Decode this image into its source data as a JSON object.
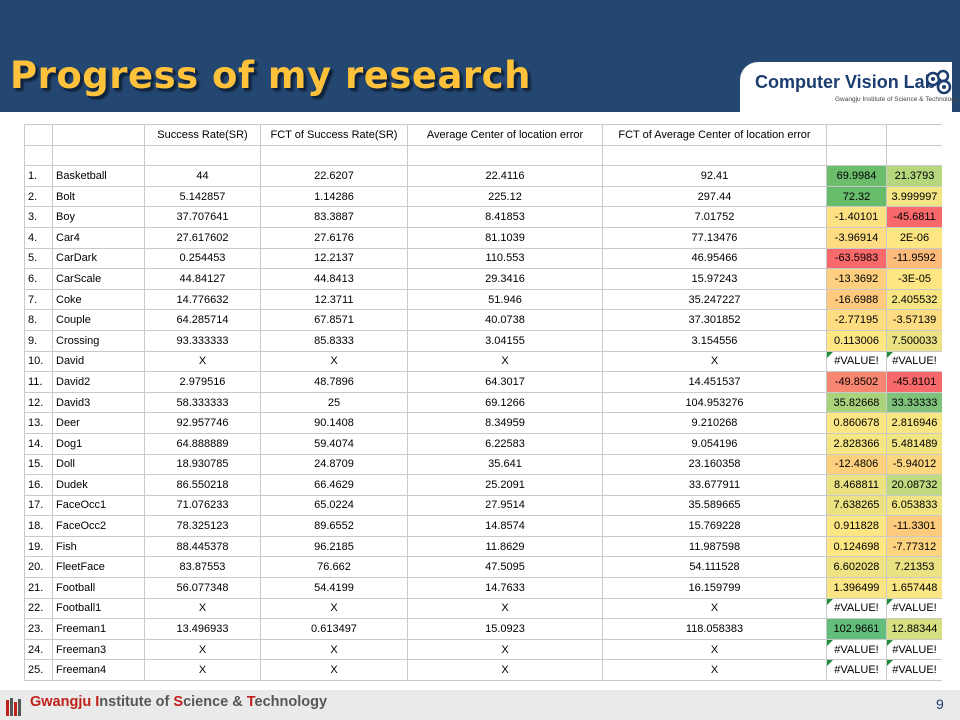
{
  "slide": {
    "title": "Progress of my research",
    "page_number": "9"
  },
  "logo": {
    "text": "Computer Vision Lab.",
    "subtitle": "Gwangju Institute of Science & Technology"
  },
  "footer": {
    "institute_part1": "Gwangju ",
    "institute_part2": "I",
    "institute_part3": "nstitute of ",
    "institute_part4": "S",
    "institute_part5": "cience & ",
    "institute_part6": "T",
    "institute_part7": "echnology"
  },
  "table": {
    "headers": [
      "",
      "",
      "Success Rate(SR)",
      "FCT of Success Rate(SR)",
      "Average Center of location error",
      "FCT of Average Center of location error",
      "",
      ""
    ],
    "rows": [
      {
        "num": "1.",
        "name": "Basketball",
        "sr": "44",
        "fct_sr": "22.6207",
        "acle": "22.4116",
        "fct_acle": "92.41",
        "d1": "69.9984",
        "d2": "21.3793",
        "c1": "#6cbe6d",
        "c2": "#b7d77d"
      },
      {
        "num": "2.",
        "name": "Bolt",
        "sr": "5.142857",
        "fct_sr": "1.14286",
        "acle": "225.12",
        "fct_acle": "297.44",
        "d1": "72.32",
        "d2": "3.999997",
        "c1": "#67bc6b",
        "c2": "#f3e584"
      },
      {
        "num": "3.",
        "name": "Boy",
        "sr": "37.707641",
        "fct_sr": "83.3887",
        "acle": "8.41853",
        "fct_acle": "7.01752",
        "d1": "-1.40101",
        "d2": "-45.6811",
        "c1": "#fee182",
        "c2": "#f8696b"
      },
      {
        "num": "4.",
        "name": "Car4",
        "sr": "27.617602",
        "fct_sr": "27.6176",
        "acle": "81.1039",
        "fct_acle": "77.13476",
        "d1": "-3.96914",
        "d2": "2E-06",
        "c1": "#fedc81",
        "c2": "#fee782"
      },
      {
        "num": "5.",
        "name": "CarDark",
        "sr": "0.254453",
        "fct_sr": "12.2137",
        "acle": "110.553",
        "fct_acle": "46.95466",
        "d1": "-63.5983",
        "d2": "-11.9592",
        "c1": "#f8696b",
        "c2": "#fcbb7b"
      },
      {
        "num": "6.",
        "name": "CarScale",
        "sr": "44.84127",
        "fct_sr": "44.8413",
        "acle": "29.3416",
        "fct_acle": "15.97243",
        "d1": "-13.3692",
        "d2": "-3E-05",
        "c1": "#fdcf7e",
        "c2": "#fee782"
      },
      {
        "num": "7.",
        "name": "Coke",
        "sr": "14.776632",
        "fct_sr": "12.3711",
        "acle": "51.946",
        "fct_acle": "35.247227",
        "d1": "-16.6988",
        "d2": "2.405532",
        "c1": "#fdca7e",
        "c2": "#f8e683"
      },
      {
        "num": "8.",
        "name": "Couple",
        "sr": "64.285714",
        "fct_sr": "67.8571",
        "acle": "40.0738",
        "fct_acle": "37.301852",
        "d1": "-2.77195",
        "d2": "-3.57139",
        "c1": "#fedd81",
        "c2": "#fedc81"
      },
      {
        "num": "9.",
        "name": "Crossing",
        "sr": "93.333333",
        "fct_sr": "85.8333",
        "acle": "3.04155",
        "fct_acle": "3.154556",
        "d1": "0.113006",
        "d2": "7.500033",
        "c1": "#fee683",
        "c2": "#ebe283"
      },
      {
        "num": "10.",
        "name": "David",
        "sr": "X",
        "fct_sr": "X",
        "acle": "X",
        "fct_acle": "X",
        "d1": "#VALUE!",
        "d2": "#VALUE!",
        "c1": "#ffffff",
        "c2": "#ffffff",
        "err": true
      },
      {
        "num": "11.",
        "name": "David2",
        "sr": "2.979516",
        "fct_sr": "48.7896",
        "acle": "64.3017",
        "fct_acle": "14.451537",
        "d1": "-49.8502",
        "d2": "-45.8101",
        "c1": "#f98670",
        "c2": "#f8696b"
      },
      {
        "num": "12.",
        "name": "David3",
        "sr": "58.333333",
        "fct_sr": "25",
        "acle": "69.1266",
        "fct_acle": "104.953276",
        "d1": "35.82668",
        "d2": "33.33333",
        "c1": "#aad27b",
        "c2": "#7fc27c"
      },
      {
        "num": "13.",
        "name": "Deer",
        "sr": "92.957746",
        "fct_sr": "90.1408",
        "acle": "8.34959",
        "fct_acle": "9.210268",
        "d1": "0.860678",
        "d2": "2.816946",
        "c1": "#fbe683",
        "c2": "#f7e683"
      },
      {
        "num": "14.",
        "name": "Dog1",
        "sr": "64.888889",
        "fct_sr": "59.4074",
        "acle": "6.22583",
        "fct_acle": "9.054196",
        "d1": "2.828366",
        "d2": "5.481489",
        "c1": "#f5e583",
        "c2": "#f1e483"
      },
      {
        "num": "15.",
        "name": "Doll",
        "sr": "18.930785",
        "fct_sr": "24.8709",
        "acle": "35.641",
        "fct_acle": "23.160358",
        "d1": "-12.4806",
        "d2": "-5.94012",
        "c1": "#fdd07e",
        "c2": "#fdd680"
      },
      {
        "num": "16.",
        "name": "Dudek",
        "sr": "86.550218",
        "fct_sr": "66.4629",
        "acle": "25.2091",
        "fct_acle": "33.677911",
        "d1": "8.468811",
        "d2": "20.08732",
        "c1": "#eae283",
        "c2": "#bfda80"
      },
      {
        "num": "17.",
        "name": "FaceOcc1",
        "sr": "71.076233",
        "fct_sr": "65.0224",
        "acle": "27.9514",
        "fct_acle": "35.589665",
        "d1": "7.638265",
        "d2": "6.053833",
        "c1": "#ece283",
        "c2": "#f0e383"
      },
      {
        "num": "18.",
        "name": "FaceOcc2",
        "sr": "78.325123",
        "fct_sr": "89.6552",
        "acle": "14.8574",
        "fct_acle": "15.769228",
        "d1": "0.911828",
        "d2": "-11.3301",
        "c1": "#fbe683",
        "c2": "#fdcb7e"
      },
      {
        "num": "19.",
        "name": "Fish",
        "sr": "88.445378",
        "fct_sr": "96.2185",
        "acle": "11.8629",
        "fct_acle": "11.987598",
        "d1": "0.124698",
        "d2": "-7.77312",
        "c1": "#fee683",
        "c2": "#fdd580"
      },
      {
        "num": "20.",
        "name": "FleetFace",
        "sr": "83.87553",
        "fct_sr": "76.662",
        "acle": "47.5095",
        "fct_acle": "54.111528",
        "d1": "6.602028",
        "d2": "7.21353",
        "c1": "#efe383",
        "c2": "#ebe283"
      },
      {
        "num": "21.",
        "name": "Football",
        "sr": "56.077348",
        "fct_sr": "54.4199",
        "acle": "14.7633",
        "fct_acle": "16.159799",
        "d1": "1.396499",
        "d2": "1.657448",
        "c1": "#f9e583",
        "c2": "#fae683"
      },
      {
        "num": "22.",
        "name": "Football1",
        "sr": "X",
        "fct_sr": "X",
        "acle": "X",
        "fct_acle": "X",
        "d1": "#VALUE!",
        "d2": "#VALUE!",
        "c1": "#ffffff",
        "c2": "#ffffff",
        "err": true
      },
      {
        "num": "23.",
        "name": "Freeman1",
        "sr": "13.496933",
        "fct_sr": "0.613497",
        "acle": "15.0923",
        "fct_acle": "118.058383",
        "d1": "102.9661",
        "d2": "12.88344",
        "c1": "#63be7b",
        "c2": "#d6df82"
      },
      {
        "num": "24.",
        "name": "Freeman3",
        "sr": "X",
        "fct_sr": "X",
        "acle": "X",
        "fct_acle": "X",
        "d1": "#VALUE!",
        "d2": "#VALUE!",
        "c1": "#ffffff",
        "c2": "#ffffff",
        "err": true
      },
      {
        "num": "25.",
        "name": "Freeman4",
        "sr": "X",
        "fct_sr": "X",
        "acle": "X",
        "fct_acle": "X",
        "d1": "#VALUE!",
        "d2": "#VALUE!",
        "c1": "#ffffff",
        "c2": "#ffffff",
        "err": true
      }
    ]
  }
}
